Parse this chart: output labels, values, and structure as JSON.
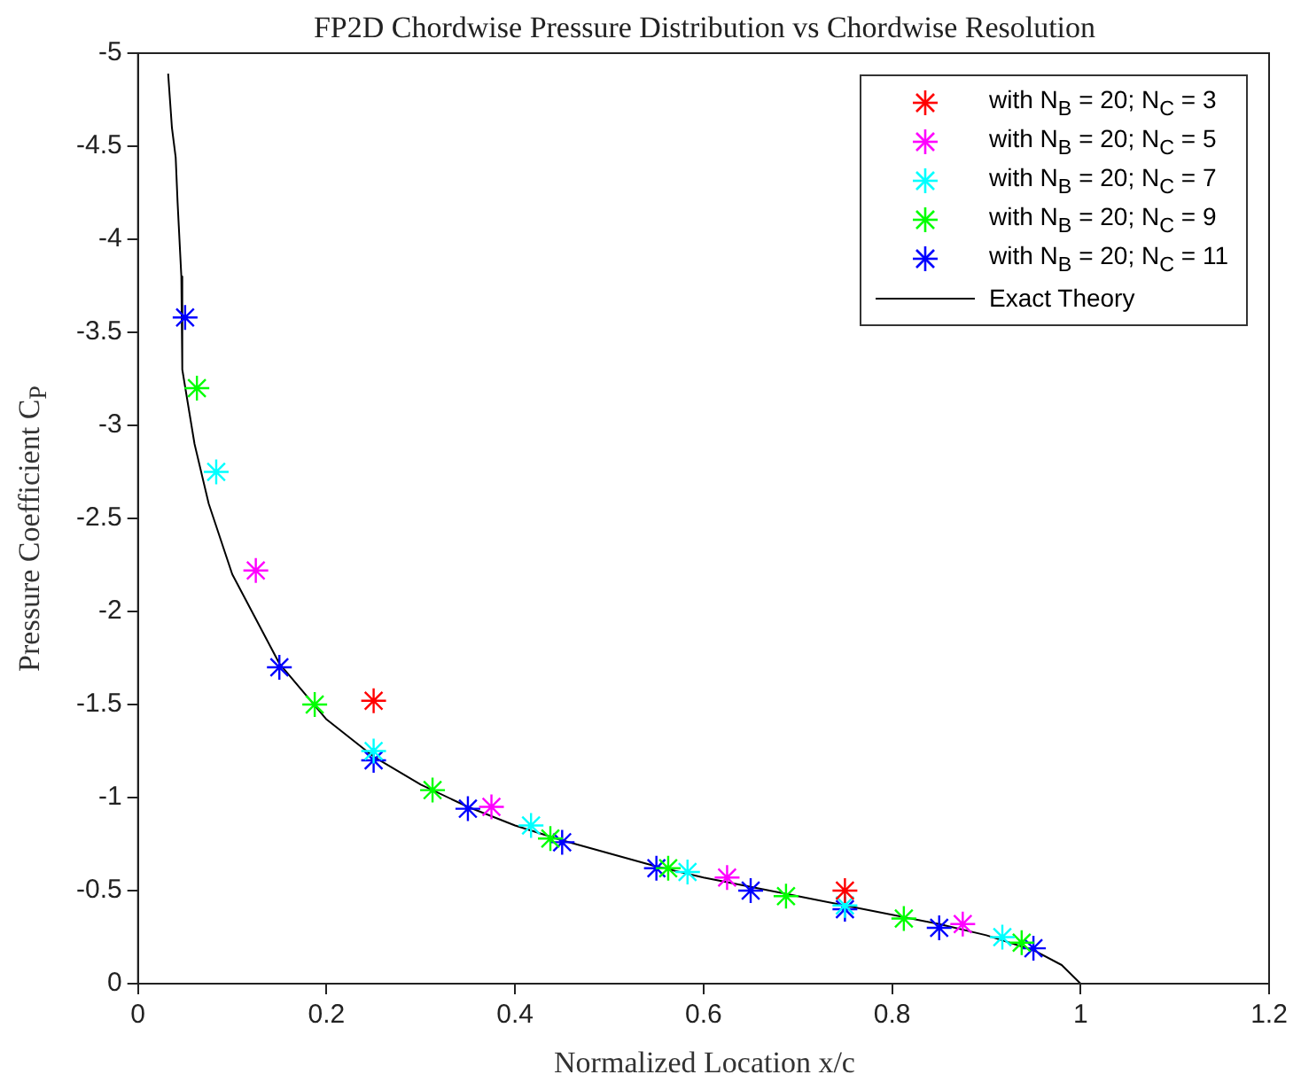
{
  "chart_data": {
    "type": "scatter",
    "title": "FP2D Chordwise Pressure Distribution vs Chordwise Resolution",
    "xlabel": "Normalized Location x/c",
    "ylabel": "Pressure Coefficient C$_{P}$",
    "xlim": [
      0,
      1.2
    ],
    "xticks": [
      0,
      0.2,
      0.4,
      0.6,
      0.8,
      1,
      1.2
    ],
    "ylim": [
      0,
      -5
    ],
    "yticks": [
      0,
      -0.5,
      -1,
      -1.5,
      -2,
      -2.5,
      -3,
      -3.5,
      -4,
      -4.5,
      -5
    ],
    "grid": false,
    "legend": "top right",
    "marker": "cross",
    "series": [
      {
        "name": "with N$_{B}$ = 20; N$_{C}$ = 3",
        "color": "#ff0000",
        "x": [
          0.25,
          0.75
        ],
        "values": [
          -1.52,
          -0.5
        ]
      },
      {
        "name": "with N$_{B}$ = 20; N$_{C}$ = 5",
        "color": "#ff00ff",
        "x": [
          0.125,
          0.375,
          0.625,
          0.875
        ],
        "values": [
          -2.22,
          -0.95,
          -0.57,
          -0.32
        ]
      },
      {
        "name": "with N$_{B}$ = 20; N$_{C}$ = 7",
        "color": "#00ffff",
        "x": [
          0.083,
          0.25,
          0.417,
          0.583,
          0.75,
          0.917
        ],
        "values": [
          -2.75,
          -1.25,
          -0.85,
          -0.6,
          -0.42,
          -0.25
        ]
      },
      {
        "name": "with N$_{B}$ = 20; N$_{C}$ = 9",
        "color": "#00ff00",
        "x": [
          0.0625,
          0.1875,
          0.3125,
          0.4375,
          0.5625,
          0.6875,
          0.8125,
          0.9375
        ],
        "values": [
          -3.2,
          -1.5,
          -1.04,
          -0.78,
          -0.62,
          -0.47,
          -0.35,
          -0.22
        ]
      },
      {
        "name": "with N$_{B}$ = 20; N$_{C}$ = 11",
        "color": "#0000ff",
        "x": [
          0.05,
          0.15,
          0.25,
          0.35,
          0.45,
          0.55,
          0.65,
          0.75,
          0.85,
          0.95
        ],
        "values": [
          -3.58,
          -1.7,
          -1.2,
          -0.94,
          -0.76,
          -0.62,
          -0.5,
          -0.4,
          -0.3,
          -0.19
        ]
      },
      {
        "name": "Exact Theory",
        "type": "line",
        "marker": "none",
        "color": "#000000",
        "x": [
          0.032,
          0.036,
          0.04,
          0.042,
          0.046,
          0.047,
          0.06,
          0.075,
          0.1,
          0.15,
          0.2,
          0.25,
          0.3,
          0.35,
          0.4,
          0.45,
          0.5,
          0.55,
          0.6,
          0.65,
          0.7,
          0.75,
          0.8,
          0.85,
          0.9,
          0.95,
          0.98,
          1.0
        ],
        "values": [
          -4.89,
          -4.6,
          -4.44,
          -4.2,
          -3.8,
          -3.3,
          -2.9,
          -2.58,
          -2.2,
          -1.72,
          -1.42,
          -1.22,
          -1.07,
          -0.95,
          -0.85,
          -0.77,
          -0.7,
          -0.63,
          -0.57,
          -0.52,
          -0.47,
          -0.42,
          -0.37,
          -0.32,
          -0.26,
          -0.18,
          -0.1,
          0
        ]
      }
    ]
  }
}
